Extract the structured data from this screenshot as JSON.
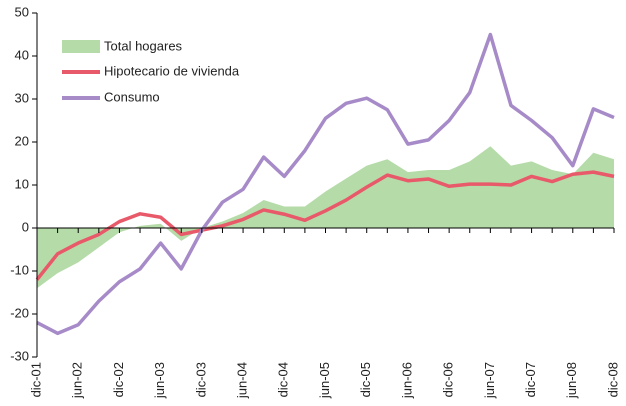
{
  "chart_data": {
    "type": "area-line",
    "categories": [
      "dic-01",
      null,
      "jun-02",
      null,
      "dic-02",
      null,
      "jun-03",
      null,
      "dic-03",
      null,
      "jun-04",
      null,
      "dic-04",
      null,
      "jun-05",
      null,
      "dic-05",
      null,
      "jun-06",
      null,
      "dic-06",
      null,
      "jun-07",
      null,
      "dic-07",
      null,
      "jun-08",
      null,
      "dic-08"
    ],
    "series": [
      {
        "name": "Total hogares",
        "color": "#b5dba8",
        "style": "area",
        "values": [
          -14,
          -10.5,
          -8,
          -4.5,
          -1,
          0.5,
          1,
          -3,
          0,
          1.5,
          3.5,
          6.5,
          5,
          5,
          8.5,
          11.5,
          14.5,
          16,
          13,
          13.5,
          13.5,
          15.5,
          19,
          14.5,
          15.5,
          13.5,
          12.5,
          17.5,
          16
        ]
      },
      {
        "name": "Hipotecario de vivienda",
        "color": "#e8596a",
        "style": "line",
        "values": [
          -12,
          -6,
          -3.5,
          -1.5,
          1.5,
          3.3,
          2.5,
          -1.5,
          -0.5,
          0.5,
          2,
          4.2,
          3.2,
          1.8,
          4,
          6.5,
          9.5,
          12.3,
          11,
          11.4,
          9.7,
          10.2,
          10.2,
          10,
          12,
          10.8,
          12.5,
          13,
          12
        ]
      },
      {
        "name": "Consumo",
        "color": "#a78bc9",
        "style": "line",
        "values": [
          -22,
          -24.5,
          -22.5,
          -17,
          -12.5,
          -9.5,
          -3.5,
          -9.5,
          -0.5,
          6,
          9,
          16.5,
          12,
          18,
          25.5,
          29,
          30.2,
          27.5,
          19.5,
          20.5,
          25,
          31.5,
          45,
          28.5,
          25,
          21,
          14.5,
          27.7,
          25.7
        ]
      }
    ],
    "ylim": [
      -30,
      50
    ],
    "yticks": [
      -30,
      -20,
      -10,
      0,
      10,
      20,
      30,
      40,
      50
    ]
  }
}
